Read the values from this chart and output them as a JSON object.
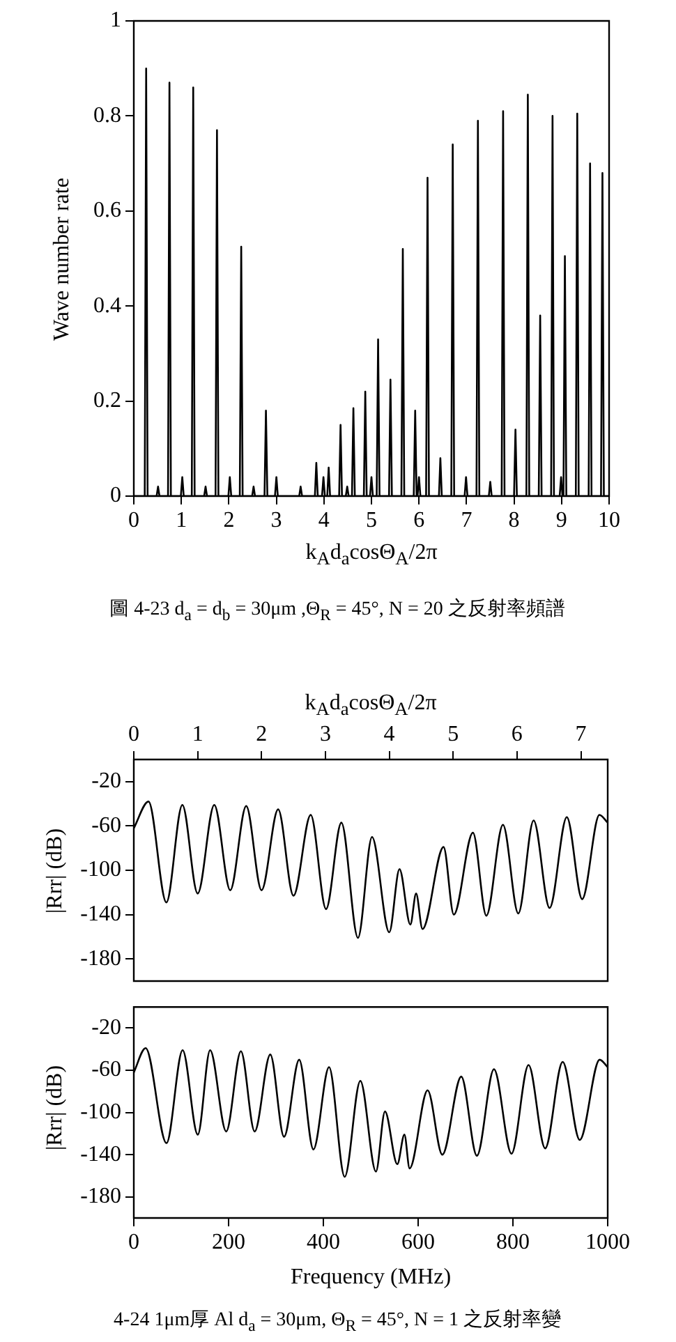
{
  "chart_data": [
    {
      "type": "line",
      "xlabel": "k$_{A}$d$_{a}$cosΘ$_{A}$/2π",
      "ylabel": "Wave number rate",
      "xlim": [
        0,
        10
      ],
      "xticks": [
        0,
        1,
        2,
        3,
        4,
        5,
        6,
        7,
        8,
        9,
        10
      ],
      "ylim": [
        0,
        1
      ],
      "yticks": [
        0,
        0.2,
        0.4,
        0.6,
        0.8,
        1
      ],
      "annotations": [
        "圖 4-23  d$_{a}$ = d$_{b}$ = 30μm ,Θ$_{R}$ = 45°, N = 20 之反射率頻譜"
      ],
      "series": [
        {
          "color": "#000000",
          "x": [
            0,
            0.23,
            0.26,
            0.29,
            0.48,
            0.51,
            0.54,
            0.72,
            0.75,
            0.78,
            0.99,
            1.02,
            1.05,
            1.22,
            1.25,
            1.28,
            1.48,
            1.51,
            1.54,
            1.72,
            1.75,
            1.78,
            1.99,
            2.02,
            2.05,
            2.23,
            2.26,
            2.29,
            2.49,
            2.52,
            2.55,
            2.75,
            2.78,
            2.81,
            2.97,
            3.0,
            3.03,
            3.48,
            3.51,
            3.54,
            3.81,
            3.84,
            3.87,
            3.96,
            3.99,
            4.02,
            4.07,
            4.1,
            4.13,
            4.32,
            4.35,
            4.38,
            4.46,
            4.49,
            4.52,
            4.59,
            4.62,
            4.65,
            4.84,
            4.87,
            4.9,
            4.97,
            5.0,
            5.03,
            5.11,
            5.14,
            5.17,
            5.37,
            5.4,
            5.43,
            5.63,
            5.66,
            5.69,
            5.89,
            5.92,
            5.95,
            5.97,
            6.0,
            6.03,
            6.15,
            6.18,
            6.21,
            6.42,
            6.45,
            6.48,
            6.68,
            6.71,
            6.74,
            6.96,
            6.99,
            7.02,
            7.21,
            7.24,
            7.27,
            7.47,
            7.5,
            7.53,
            7.74,
            7.77,
            7.8,
            8.0,
            8.03,
            8.06,
            8.26,
            8.29,
            8.32,
            8.52,
            8.55,
            8.58,
            8.78,
            8.81,
            8.84,
            8.96,
            8.99,
            9.02,
            9.04,
            9.07,
            9.1,
            9.3,
            9.33,
            9.36,
            9.57,
            9.6,
            9.63,
            9.83,
            9.86,
            9.89,
            10
          ],
          "values": [
            0,
            0,
            0.9,
            0,
            0,
            0.02,
            0,
            0,
            0.87,
            0,
            0,
            0.04,
            0,
            0,
            0.86,
            0,
            0,
            0.02,
            0,
            0,
            0.77,
            0,
            0,
            0.04,
            0,
            0,
            0.525,
            0,
            0,
            0.02,
            0,
            0,
            0.18,
            0,
            0,
            0.04,
            0,
            0,
            0.02,
            0,
            0,
            0.07,
            0,
            0,
            0.04,
            0,
            0,
            0.06,
            0,
            0,
            0.15,
            0,
            0,
            0.02,
            0,
            0,
            0.185,
            0,
            0,
            0.22,
            0,
            0,
            0.04,
            0,
            0,
            0.33,
            0,
            0,
            0.245,
            0,
            0,
            0.52,
            0,
            0,
            0.18,
            0,
            0,
            0.04,
            0,
            0,
            0.67,
            0,
            0,
            0.08,
            0,
            0,
            0.74,
            0,
            0,
            0.04,
            0,
            0,
            0.79,
            0,
            0,
            0.03,
            0,
            0,
            0.81,
            0,
            0,
            0.14,
            0,
            0,
            0.845,
            0,
            0,
            0.38,
            0,
            0,
            0.8,
            0,
            0,
            0.04,
            0,
            0,
            0.505,
            0,
            0,
            0.805,
            0,
            0,
            0.7,
            0,
            0,
            0.68,
            0,
            0
          ]
        }
      ]
    },
    {
      "type": "line",
      "xlabel": "k$_{A}$d$_{a}$cosΘ$_{A}$/2π",
      "ylabel": "|Rrr| (dB)",
      "xlim": [
        0,
        7.42
      ],
      "xticks": [
        0,
        1,
        2,
        3,
        4,
        5,
        6,
        7
      ],
      "ylim": [
        -200,
        0
      ],
      "yticks": [
        -180,
        -140,
        -100,
        -60,
        -20
      ],
      "series": [
        {
          "color": "#000000",
          "x": [
            0,
            0.23,
            0.51,
            0.76,
            1.0,
            1.26,
            1.51,
            1.76,
            2.0,
            2.26,
            2.5,
            2.77,
            3.01,
            3.25,
            3.51,
            3.73,
            4.0,
            4.16,
            4.33,
            4.42,
            4.52,
            4.85,
            5.01,
            5.31,
            5.52,
            5.78,
            6.02,
            6.26,
            6.51,
            6.78,
            7.02,
            7.29,
            7.42
          ],
          "values": [
            -62,
            -38,
            -129,
            -41,
            -121,
            -41,
            -118,
            -42,
            -118,
            -45,
            -123,
            -50,
            -135,
            -57,
            -161,
            -70,
            -156,
            -99,
            -149,
            -121,
            -153,
            -79,
            -140,
            -66,
            -141,
            -59,
            -139,
            -55,
            -134,
            -52,
            -126,
            -50,
            -57
          ]
        }
      ]
    },
    {
      "type": "line",
      "xlabel": "Frequency (MHz)",
      "ylabel": "|Rrr| (dB)",
      "xlim": [
        0,
        1000
      ],
      "xticks": [
        0,
        200,
        400,
        600,
        800,
        1000
      ],
      "ylim": [
        -200,
        0
      ],
      "yticks": [
        -180,
        -140,
        -100,
        -60,
        -20
      ],
      "annotations": [
        "4-24  1μm厚 Al d$_{a}$ = 30μm, Θ$_{R}$ = 45°, N = 1 之反射率變"
      ],
      "series": [
        {
          "color": "#000000",
          "x": [
            0,
            25,
            69,
            103,
            135,
            161,
            195,
            226,
            255,
            288,
            317,
            349,
            379,
            412,
            445,
            478,
            511,
            530,
            556,
            571,
            582,
            620,
            651,
            691,
            724,
            760,
            797,
            833,
            868,
            905,
            941,
            983,
            1000
          ],
          "values": [
            -62,
            -39,
            -129,
            -41,
            -121,
            -41,
            -118,
            -42,
            -118,
            -45,
            -123,
            -50,
            -135,
            -57,
            -161,
            -70,
            -156,
            -99,
            -149,
            -121,
            -153,
            -79,
            -140,
            -66,
            -141,
            -59,
            -139,
            -55,
            -134,
            -52,
            -126,
            -50,
            -57
          ]
        }
      ]
    }
  ]
}
